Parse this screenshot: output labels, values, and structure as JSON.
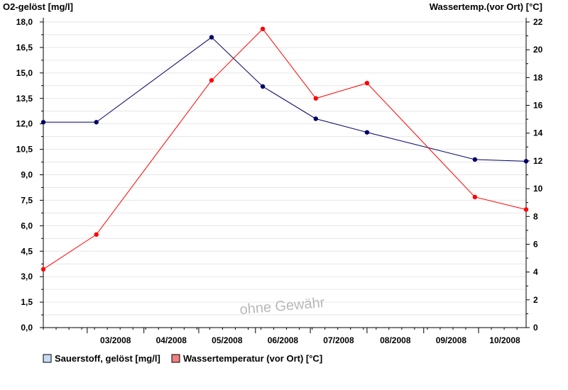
{
  "chart_data": {
    "type": "line",
    "x": [
      "2008-02-06",
      "2008-03-06",
      "2008-05-08",
      "2008-06-05",
      "2008-07-04",
      "2008-08-01",
      "2008-09-29",
      "2008-10-27"
    ],
    "month_labels": [
      "03/2008",
      "04/2008",
      "05/2008",
      "06/2008",
      "07/2008",
      "08/2008",
      "09/2008",
      "10/2008"
    ],
    "y_left": {
      "label": "O2-gelöst [mg/l]",
      "min": 0,
      "max": 18,
      "step": 1.5,
      "ticks": [
        "0,0",
        "1,5",
        "3,0",
        "4,5",
        "6,0",
        "7,5",
        "9,0",
        "10,5",
        "12,0",
        "13,5",
        "15,0",
        "16,5",
        "18,0"
      ]
    },
    "y_right": {
      "label": "Wassertemp.(vor Ort) [°C]",
      "min": 0,
      "max": 22,
      "step": 2,
      "ticks": [
        "0",
        "2",
        "4",
        "6",
        "8",
        "10",
        "12",
        "14",
        "16",
        "18",
        "20",
        "22"
      ]
    },
    "series": [
      {
        "name": "Sauerstoff, gelöst [mg/l]",
        "axis": "left",
        "color": "#000066",
        "legend_fill": "#c6dcf5",
        "values": [
          12.1,
          12.1,
          17.1,
          14.2,
          12.3,
          11.5,
          9.9,
          9.8
        ]
      },
      {
        "name": "Wassertemperatur (vor Ort) [°C]",
        "axis": "right",
        "color": "#ff0000",
        "legend_fill": "#f08080",
        "values": [
          4.2,
          6.7,
          17.8,
          21.5,
          16.5,
          17.6,
          9.4,
          8.5
        ]
      }
    ],
    "grid": true,
    "legend_position": "bottom-left",
    "watermark": "ohne Gewähr"
  }
}
